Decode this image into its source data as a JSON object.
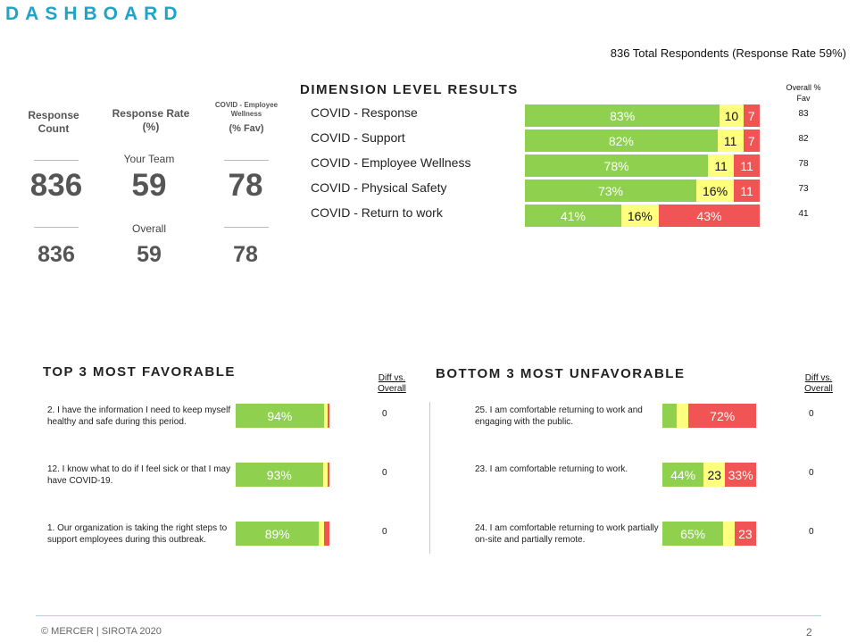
{
  "header": {
    "title": "DASHBOARD",
    "respondents": "836 Total Respondents (Response Rate 59%)"
  },
  "kpis": {
    "response_count_label": "Response Count",
    "response_rate_label": "Response Rate (%)",
    "covid_label_line1": "COVID - Employee Wellness",
    "covid_label_line2": "(% Fav)",
    "your_team_label": "Your Team",
    "overall_label": "Overall",
    "team": {
      "count": "836",
      "rate": "59",
      "covid": "78"
    },
    "overall": {
      "count": "836",
      "rate": "59",
      "covid": "78"
    }
  },
  "dimensions": {
    "title": "DIMENSION LEVEL RESULTS",
    "overall_header": "Overall % Fav",
    "rows": [
      {
        "label": "COVID - Response",
        "fav": 83,
        "neu": 10,
        "unf": 7,
        "fav_text": "83%",
        "neu_text": "10",
        "unf_text": "7",
        "overall": "83"
      },
      {
        "label": "COVID - Support",
        "fav": 82,
        "neu": 11,
        "unf": 7,
        "fav_text": "82%",
        "neu_text": "11",
        "unf_text": "7",
        "overall": "82"
      },
      {
        "label": "COVID - Employee Wellness",
        "fav": 78,
        "neu": 11,
        "unf": 11,
        "fav_text": "78%",
        "neu_text": "11",
        "unf_text": "11",
        "overall": "78"
      },
      {
        "label": "COVID - Physical Safety",
        "fav": 73,
        "neu": 16,
        "unf": 11,
        "fav_text": "73%",
        "neu_text": "16%",
        "unf_text": "11",
        "overall": "73"
      },
      {
        "label": "COVID - Return to work",
        "fav": 41,
        "neu": 16,
        "unf": 43,
        "fav_text": "41%",
        "neu_text": "16%",
        "unf_text": "43%",
        "overall": "41"
      }
    ]
  },
  "top3": {
    "title": "TOP 3 MOST FAVORABLE",
    "diff_header": "Diff vs. Overall",
    "items": [
      {
        "text": "2. I have the information I need to keep myself healthy and safe during this period.",
        "fav": 94,
        "neu": 4,
        "unf": 2,
        "fav_text": "94%",
        "neu_text": "",
        "unf_text": "",
        "diff": "0"
      },
      {
        "text": "12. I know what to do if I feel sick or that I may have COVID-19.",
        "fav": 93,
        "neu": 5,
        "unf": 2,
        "fav_text": "93%",
        "neu_text": "",
        "unf_text": "",
        "diff": "0"
      },
      {
        "text": "1. Our organization is taking the right steps to support employees during this outbreak.",
        "fav": 89,
        "neu": 5,
        "unf": 6,
        "fav_text": "89%",
        "neu_text": "",
        "unf_text": "",
        "diff": "0"
      }
    ]
  },
  "bottom3": {
    "title": "BOTTOM 3 MOST UNFAVORABLE",
    "diff_header": "Diff vs. Overall",
    "items": [
      {
        "text": "25. I am comfortable returning to work and engaging with the public.",
        "fav": 15,
        "neu": 13,
        "unf": 72,
        "fav_text": "",
        "neu_text": "",
        "unf_text": "72%",
        "diff": "0"
      },
      {
        "text": "23. I am comfortable returning to work.",
        "fav": 44,
        "neu": 23,
        "unf": 33,
        "fav_text": "44%",
        "neu_text": "23",
        "unf_text": "33%",
        "diff": "0"
      },
      {
        "text": "24. I am comfortable returning to work partially on-site and partially remote.",
        "fav": 65,
        "neu": 12,
        "unf": 23,
        "fav_text": "65%",
        "neu_text": "",
        "unf_text": "23",
        "diff": "0"
      }
    ]
  },
  "footer": {
    "copyright": "© MERCER | SIROTA 2020",
    "page": "2"
  },
  "colors": {
    "title": "#1fa3c6",
    "favorable": "#8fd14f",
    "neutral": "#ffff7f",
    "unfavorable": "#f05454"
  }
}
